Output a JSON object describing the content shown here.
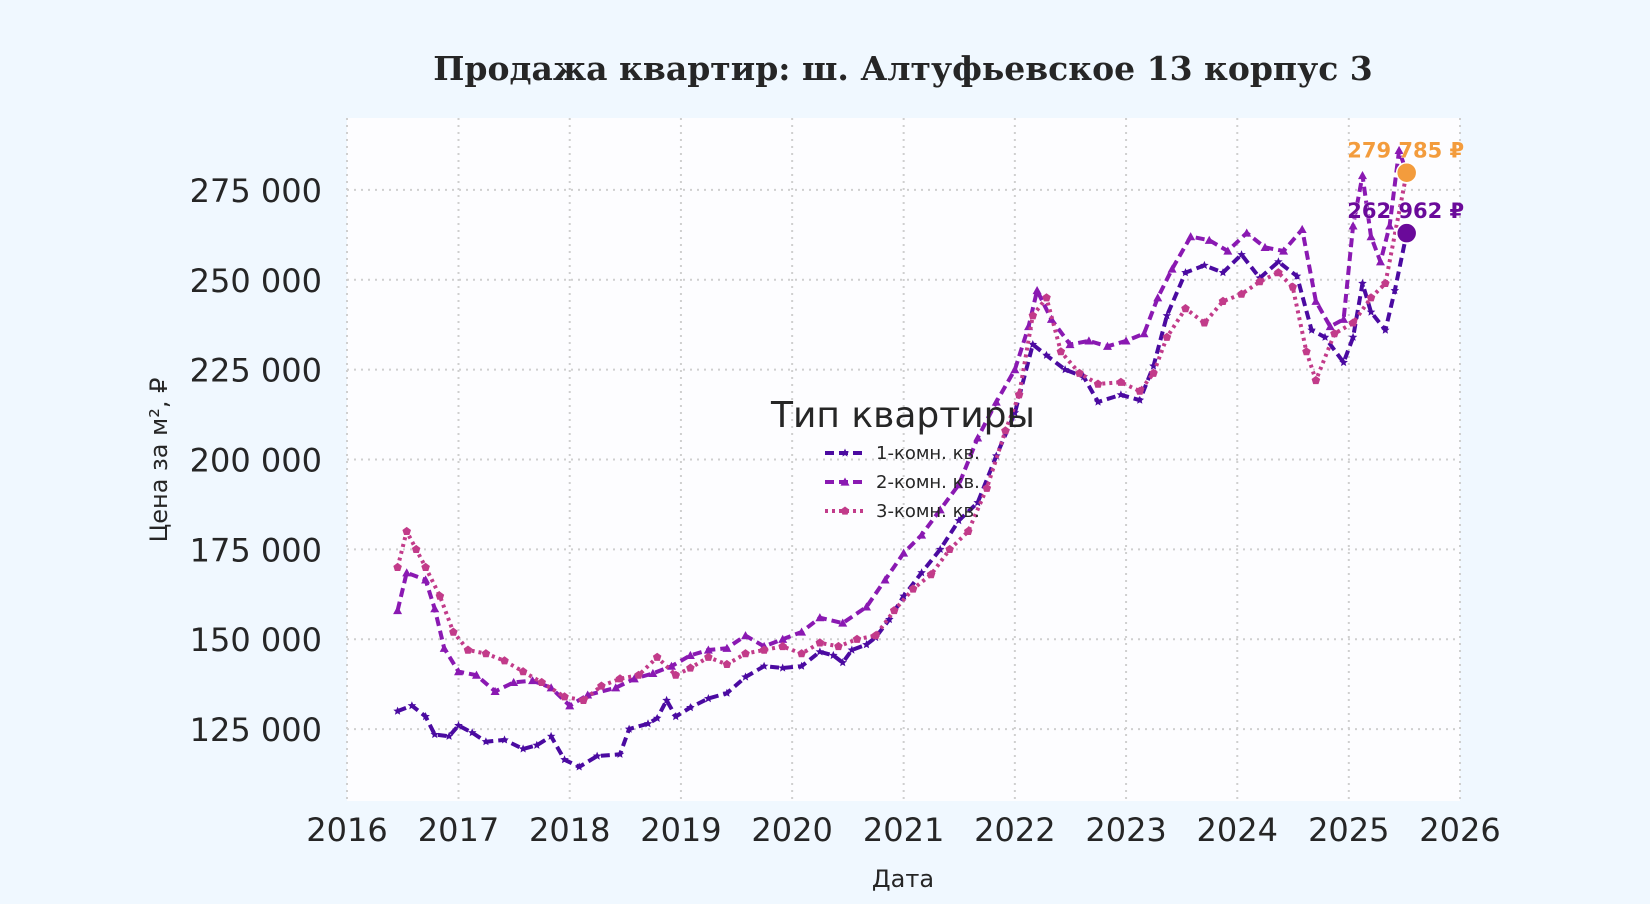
{
  "chart_data": {
    "type": "line",
    "title": "Продажа квартир: ш. Алтуфьевское 13 корпус 3",
    "xlabel": "Дата",
    "ylabel": "Цена за м², ₽",
    "xlim": [
      "2016-01-01",
      "2026-01-01"
    ],
    "ylim": [
      105000,
      295000
    ],
    "x_ticks": [
      "2016",
      "2017",
      "2018",
      "2019",
      "2020",
      "2021",
      "2022",
      "2023",
      "2024",
      "2025",
      "2026"
    ],
    "y_ticks": [
      125000,
      150000,
      175000,
      200000,
      225000,
      250000,
      275000
    ],
    "y_tick_labels": [
      "125 000",
      "150 000",
      "175 000",
      "200 000",
      "225 000",
      "250 000",
      "275 000"
    ],
    "grid": true,
    "legend": {
      "title": "Тип квартиры",
      "placement": "center"
    },
    "series": [
      {
        "name": "1-комн. кв.",
        "color": "#4b0aa1",
        "style": "dashed",
        "marker": "star",
        "points": [
          [
            "2016-06-15",
            130000
          ],
          [
            "2016-08-01",
            131500
          ],
          [
            "2016-09-15",
            128500
          ],
          [
            "2016-10-15",
            123500
          ],
          [
            "2016-12-01",
            123000
          ],
          [
            "2017-01-01",
            126000
          ],
          [
            "2017-02-15",
            124000
          ],
          [
            "2017-04-01",
            121500
          ],
          [
            "2017-06-01",
            122000
          ],
          [
            "2017-08-01",
            119500
          ],
          [
            "2017-09-15",
            120500
          ],
          [
            "2017-11-01",
            123000
          ],
          [
            "2017-12-15",
            116500
          ],
          [
            "2018-02-01",
            114500
          ],
          [
            "2018-04-01",
            117500
          ],
          [
            "2018-06-15",
            118000
          ],
          [
            "2018-07-15",
            125000
          ],
          [
            "2018-09-15",
            126500
          ],
          [
            "2018-10-15",
            128000
          ],
          [
            "2018-11-15",
            133000
          ],
          [
            "2018-12-15",
            128500
          ],
          [
            "2019-02-01",
            131000
          ],
          [
            "2019-04-01",
            133500
          ],
          [
            "2019-06-01",
            135000
          ],
          [
            "2019-08-01",
            139500
          ],
          [
            "2019-10-01",
            142500
          ],
          [
            "2019-12-01",
            142000
          ],
          [
            "2020-02-01",
            142500
          ],
          [
            "2020-04-01",
            146500
          ],
          [
            "2020-05-15",
            145500
          ],
          [
            "2020-06-15",
            143500
          ],
          [
            "2020-07-15",
            147000
          ],
          [
            "2020-09-01",
            148500
          ],
          [
            "2020-10-01",
            150500
          ],
          [
            "2020-11-15",
            155500
          ],
          [
            "2021-01-01",
            162000
          ],
          [
            "2021-03-01",
            168500
          ],
          [
            "2021-05-01",
            175000
          ],
          [
            "2021-07-01",
            183000
          ],
          [
            "2021-09-01",
            188000
          ],
          [
            "2021-11-01",
            201000
          ],
          [
            "2022-01-01",
            213000
          ],
          [
            "2022-03-01",
            232000
          ],
          [
            "2022-04-15",
            229000
          ],
          [
            "2022-06-15",
            225000
          ],
          [
            "2022-08-15",
            223000
          ],
          [
            "2022-10-01",
            216000
          ],
          [
            "2022-12-15",
            218000
          ],
          [
            "2023-02-15",
            216500
          ],
          [
            "2023-04-01",
            226000
          ],
          [
            "2023-05-15",
            240000
          ],
          [
            "2023-07-15",
            252000
          ],
          [
            "2023-09-15",
            254000
          ],
          [
            "2023-11-15",
            252000
          ],
          [
            "2024-01-15",
            257000
          ],
          [
            "2024-03-15",
            250500
          ],
          [
            "2024-05-15",
            255000
          ],
          [
            "2024-07-15",
            251000
          ],
          [
            "2024-09-01",
            236000
          ],
          [
            "2024-10-15",
            234000
          ],
          [
            "2024-12-15",
            227000
          ],
          [
            "2025-01-15",
            234000
          ],
          [
            "2025-02-15",
            249000
          ],
          [
            "2025-03-15",
            241000
          ],
          [
            "2025-05-01",
            236000
          ],
          [
            "2025-06-01",
            247000
          ],
          [
            "2025-07-10",
            262962
          ]
        ]
      },
      {
        "name": "2-комн. кв.",
        "color": "#8a19b2",
        "style": "dashed",
        "marker": "triangle",
        "points": [
          [
            "2016-06-15",
            158000
          ],
          [
            "2016-07-15",
            168500
          ],
          [
            "2016-09-15",
            166500
          ],
          [
            "2016-10-15",
            158500
          ],
          [
            "2016-11-15",
            147500
          ],
          [
            "2017-01-01",
            141000
          ],
          [
            "2017-03-01",
            140000
          ],
          [
            "2017-05-01",
            135500
          ],
          [
            "2017-07-01",
            138000
          ],
          [
            "2017-09-01",
            138500
          ],
          [
            "2017-11-01",
            136500
          ],
          [
            "2018-01-01",
            131500
          ],
          [
            "2018-03-01",
            134500
          ],
          [
            "2018-06-01",
            136500
          ],
          [
            "2018-08-01",
            139000
          ],
          [
            "2018-10-01",
            140500
          ],
          [
            "2018-12-01",
            142500
          ],
          [
            "2019-02-01",
            145500
          ],
          [
            "2019-04-01",
            147000
          ],
          [
            "2019-06-01",
            147500
          ],
          [
            "2019-08-01",
            151000
          ],
          [
            "2019-10-01",
            148000
          ],
          [
            "2019-12-01",
            150000
          ],
          [
            "2020-02-01",
            152000
          ],
          [
            "2020-04-01",
            156000
          ],
          [
            "2020-06-15",
            154500
          ],
          [
            "2020-09-01",
            159000
          ],
          [
            "2020-11-01",
            166500
          ],
          [
            "2021-01-01",
            174000
          ],
          [
            "2021-03-01",
            179000
          ],
          [
            "2021-05-01",
            186000
          ],
          [
            "2021-07-01",
            193000
          ],
          [
            "2021-09-01",
            206000
          ],
          [
            "2021-11-01",
            216000
          ],
          [
            "2022-01-01",
            225000
          ],
          [
            "2022-02-15",
            237000
          ],
          [
            "2022-03-15",
            247000
          ],
          [
            "2022-05-01",
            239000
          ],
          [
            "2022-07-01",
            232000
          ],
          [
            "2022-09-01",
            233000
          ],
          [
            "2022-11-01",
            231500
          ],
          [
            "2023-01-01",
            233000
          ],
          [
            "2023-03-01",
            235000
          ],
          [
            "2023-04-15",
            245000
          ],
          [
            "2023-06-01",
            253000
          ],
          [
            "2023-08-01",
            262000
          ],
          [
            "2023-10-01",
            261000
          ],
          [
            "2023-12-01",
            258000
          ],
          [
            "2024-02-01",
            263000
          ],
          [
            "2024-04-01",
            259000
          ],
          [
            "2024-06-01",
            258000
          ],
          [
            "2024-08-01",
            264000
          ],
          [
            "2024-09-15",
            244000
          ],
          [
            "2024-11-01",
            237000
          ],
          [
            "2024-12-15",
            239000
          ],
          [
            "2025-01-15",
            265000
          ],
          [
            "2025-02-15",
            279000
          ],
          [
            "2025-03-15",
            262000
          ],
          [
            "2025-04-15",
            255000
          ],
          [
            "2025-05-15",
            265000
          ],
          [
            "2025-06-15",
            286000
          ],
          [
            "2025-07-10",
            279785
          ]
        ]
      },
      {
        "name": "3-комн. кв.",
        "color": "#c23b8a",
        "style": "dotted",
        "marker": "pentagon",
        "points": [
          [
            "2016-06-15",
            170000
          ],
          [
            "2016-07-15",
            180000
          ],
          [
            "2016-08-15",
            175000
          ],
          [
            "2016-09-15",
            170000
          ],
          [
            "2016-11-01",
            162000
          ],
          [
            "2016-12-15",
            152000
          ],
          [
            "2017-02-01",
            147000
          ],
          [
            "2017-04-01",
            146000
          ],
          [
            "2017-06-01",
            144000
          ],
          [
            "2017-08-01",
            141000
          ],
          [
            "2017-10-01",
            138000
          ],
          [
            "2017-12-15",
            134000
          ],
          [
            "2018-02-15",
            133000
          ],
          [
            "2018-04-15",
            137000
          ],
          [
            "2018-06-15",
            139000
          ],
          [
            "2018-08-15",
            140000
          ],
          [
            "2018-10-15",
            145000
          ],
          [
            "2018-12-15",
            140000
          ],
          [
            "2019-02-01",
            142000
          ],
          [
            "2019-04-01",
            145000
          ],
          [
            "2019-06-01",
            143000
          ],
          [
            "2019-08-01",
            146000
          ],
          [
            "2019-10-01",
            147000
          ],
          [
            "2019-12-01",
            148000
          ],
          [
            "2020-02-01",
            146000
          ],
          [
            "2020-04-01",
            149000
          ],
          [
            "2020-06-01",
            148000
          ],
          [
            "2020-08-01",
            150000
          ],
          [
            "2020-10-01",
            151000
          ],
          [
            "2020-12-01",
            158000
          ],
          [
            "2021-02-01",
            164000
          ],
          [
            "2021-04-01",
            168000
          ],
          [
            "2021-06-01",
            175000
          ],
          [
            "2021-08-01",
            180000
          ],
          [
            "2021-10-01",
            192000
          ],
          [
            "2021-12-01",
            208000
          ],
          [
            "2022-01-15",
            218000
          ],
          [
            "2022-03-01",
            240000
          ],
          [
            "2022-04-15",
            245000
          ],
          [
            "2022-06-01",
            230000
          ],
          [
            "2022-08-01",
            224000
          ],
          [
            "2022-10-01",
            221000
          ],
          [
            "2022-12-15",
            221500
          ],
          [
            "2023-02-15",
            219000
          ],
          [
            "2023-04-01",
            224000
          ],
          [
            "2023-05-15",
            234000
          ],
          [
            "2023-07-15",
            242000
          ],
          [
            "2023-09-15",
            238000
          ],
          [
            "2023-11-15",
            244000
          ],
          [
            "2024-01-15",
            246000
          ],
          [
            "2024-03-15",
            249500
          ],
          [
            "2024-05-15",
            252000
          ],
          [
            "2024-07-01",
            248000
          ],
          [
            "2024-08-15",
            230000
          ],
          [
            "2024-09-15",
            222000
          ],
          [
            "2024-11-15",
            235000
          ],
          [
            "2025-01-15",
            238000
          ],
          [
            "2025-03-15",
            245000
          ],
          [
            "2025-05-01",
            249000
          ],
          [
            "2025-07-10",
            279785
          ]
        ]
      }
    ],
    "end_markers": [
      {
        "date": "2025-07-10",
        "value": 279785,
        "label": "279 785 ₽",
        "color": "#f39c3d"
      },
      {
        "date": "2025-07-10",
        "value": 262962,
        "label": "262 962 ₽",
        "color": "#6a0a9a"
      }
    ]
  }
}
